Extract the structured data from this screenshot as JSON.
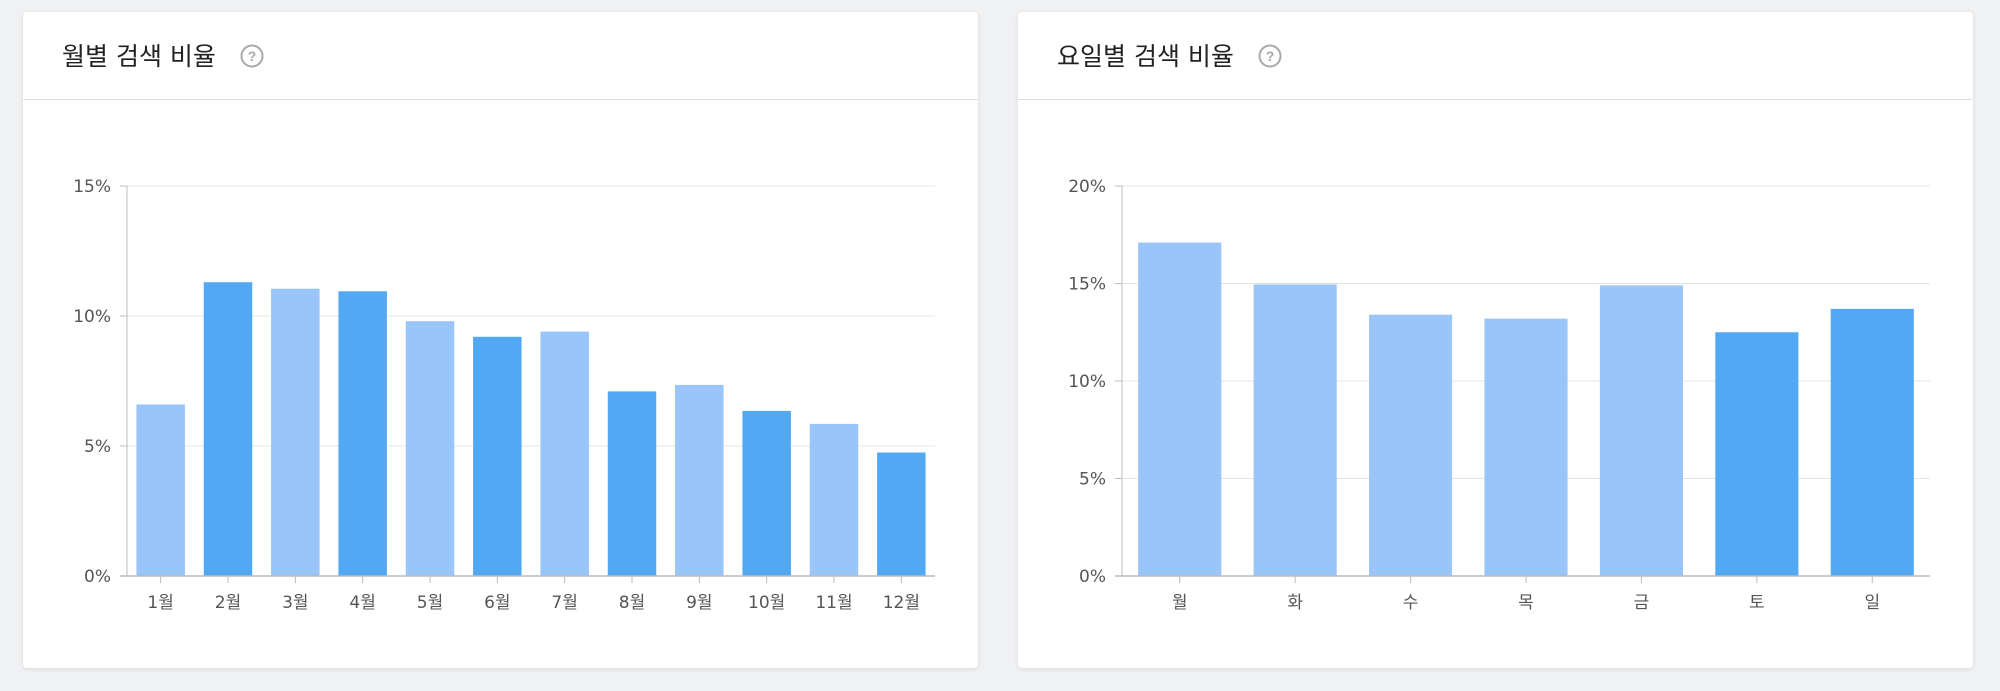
{
  "colors": {
    "bar_light": "#99c5f8",
    "bar_dark": "#52a8f2",
    "grid": "#e3e4e6",
    "axis": "#b8bcc2"
  },
  "help_icon": "question-circle-icon",
  "chart_data": [
    {
      "type": "bar",
      "title": "월별 검색 비율",
      "categories": [
        "1월",
        "2월",
        "3월",
        "4월",
        "5월",
        "6월",
        "7월",
        "8월",
        "9월",
        "10월",
        "11월",
        "12월"
      ],
      "values": [
        6.6,
        11.3,
        11.05,
        10.95,
        9.8,
        9.2,
        9.4,
        7.1,
        7.35,
        6.35,
        5.85,
        4.75
      ],
      "bar_tone": [
        "light",
        "dark",
        "light",
        "dark",
        "light",
        "dark",
        "light",
        "dark",
        "light",
        "dark",
        "light",
        "dark"
      ],
      "ylim": [
        0,
        15
      ],
      "yticks": [
        0,
        5,
        10,
        15
      ],
      "ytick_labels": [
        "0%",
        "5%",
        "10%",
        "15%"
      ],
      "xlabel": "",
      "ylabel": "",
      "grid": true,
      "legend": "none"
    },
    {
      "type": "bar",
      "title": "요일별 검색 비율",
      "categories": [
        "월",
        "화",
        "수",
        "목",
        "금",
        "토",
        "일"
      ],
      "values": [
        17.1,
        14.95,
        13.4,
        13.2,
        14.9,
        12.5,
        13.7
      ],
      "bar_tone": [
        "light",
        "light",
        "light",
        "light",
        "light",
        "dark",
        "dark"
      ],
      "ylim": [
        0,
        20
      ],
      "yticks": [
        0,
        5,
        10,
        15,
        20
      ],
      "ytick_labels": [
        "0%",
        "5%",
        "10%",
        "15%",
        "20%"
      ],
      "xlabel": "",
      "ylabel": "",
      "grid": true,
      "legend": "none"
    }
  ]
}
